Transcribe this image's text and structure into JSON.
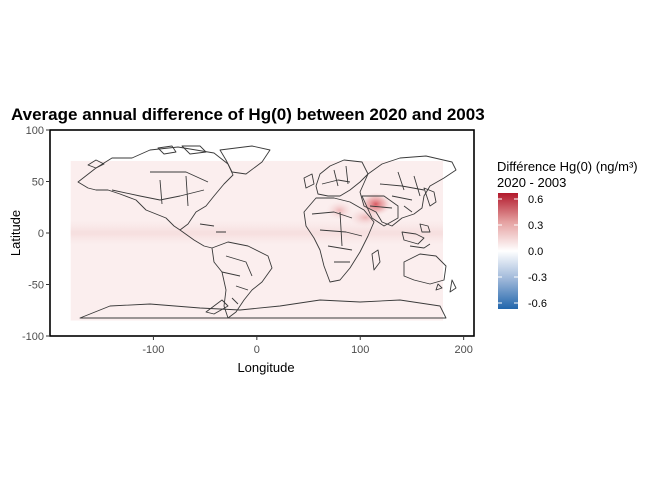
{
  "chart_data": {
    "type": "heatmap",
    "title": "Average annual difference of Hg(0) between 2020 and 2003",
    "xlabel": "Longitude",
    "ylabel": "Latitude",
    "xlim": [
      -200,
      210
    ],
    "ylim": [
      -100,
      100
    ],
    "x_ticks": [
      -100,
      0,
      100,
      200
    ],
    "x_tick_labels": [
      "-100",
      "0",
      "100",
      "200"
    ],
    "y_ticks": [
      -100,
      -50,
      0,
      50,
      100
    ],
    "y_tick_labels": [
      "-100",
      "-50",
      "0",
      "50",
      "100"
    ],
    "grid": false,
    "data_extent": {
      "lon": [
        -180,
        180
      ],
      "lat": [
        -85,
        70
      ]
    },
    "legend": {
      "title_line1": "Différence Hg(0) (ng/m³)",
      "title_line2": "2020 - 2003",
      "placement": "right",
      "range": [
        -0.6,
        0.6
      ],
      "breaks": [
        0.6,
        0.3,
        0.0,
        -0.3,
        -0.6
      ],
      "break_labels": [
        "0.6",
        "0.3",
        "0.0",
        "-0.3",
        "-0.6"
      ],
      "colors": {
        "high": "#b2182b",
        "mid": "#ffffff",
        "low": "#2166ac"
      }
    },
    "field_description_values": {
      "background_difference": 0.05,
      "equatorial_band_difference": 0.08,
      "east_china_max_difference": 0.45,
      "east_china_center": [
        115,
        28
      ],
      "southeast_asia_difference": 0.15,
      "southeast_asia_center": [
        105,
        15
      ],
      "india_difference": 0.1,
      "india_center": [
        80,
        22
      ]
    }
  }
}
